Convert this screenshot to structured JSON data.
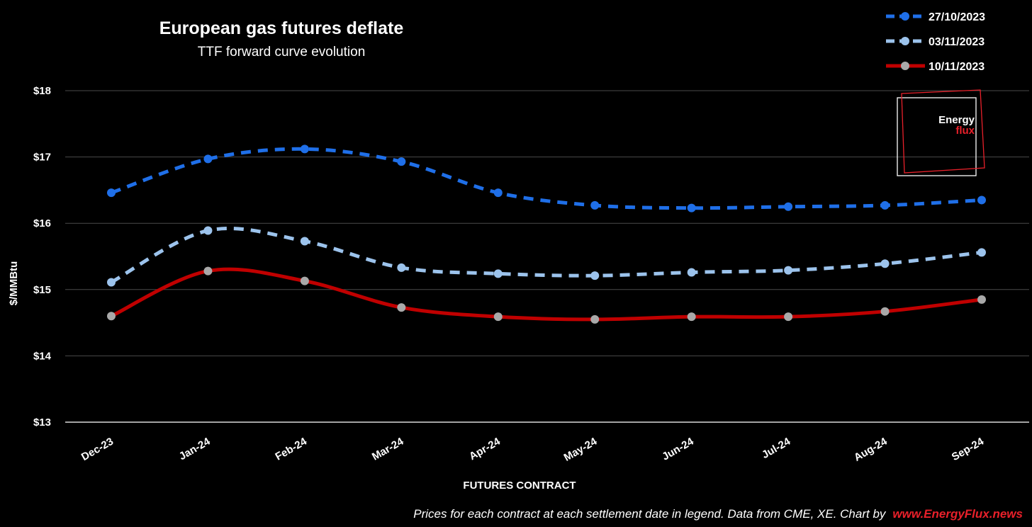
{
  "chart_data": {
    "type": "line",
    "title": "European gas futures deflate",
    "subtitle": "TTF forward curve evolution",
    "xlabel": "FUTURES CONTRACT",
    "ylabel": "$/MMBtu",
    "categories": [
      "Dec-23",
      "Jan-24",
      "Feb-24",
      "Mar-24",
      "Apr-24",
      "May-24",
      "Jun-24",
      "Jul-24",
      "Aug-24",
      "Sep-24"
    ],
    "ylim": [
      13,
      18
    ],
    "yticks": [
      13,
      14,
      15,
      16,
      17,
      18
    ],
    "ytick_labels": [
      "$13",
      "$14",
      "$15",
      "$16",
      "$17",
      "$18"
    ],
    "grid": true,
    "legend_position": "top-right",
    "series": [
      {
        "name": "27/10/2023",
        "color": "#1f6fe8",
        "marker_color": "#1f6fe8",
        "style": "dashed",
        "values": [
          16.46,
          16.97,
          17.12,
          16.93,
          16.46,
          16.27,
          16.23,
          16.25,
          16.27,
          16.35
        ]
      },
      {
        "name": "03/11/2023",
        "color": "#9cc3ec",
        "marker_color": "#9cc3ec",
        "style": "dashed",
        "values": [
          15.11,
          15.89,
          15.73,
          15.33,
          15.24,
          15.21,
          15.26,
          15.29,
          15.39,
          15.56
        ]
      },
      {
        "name": "10/11/2023",
        "color": "#c00000",
        "marker_color": "#a9a9a9",
        "style": "solid",
        "values": [
          14.6,
          15.28,
          15.13,
          14.73,
          14.59,
          14.55,
          14.59,
          14.59,
          14.67,
          14.85
        ]
      }
    ]
  },
  "footer": {
    "note": "Prices for each contract at each settlement date in legend. Data from CME, XE. Chart by",
    "link": "www.EnergyFlux.news"
  },
  "logo": {
    "line1": "Energy",
    "line2": "flux"
  }
}
